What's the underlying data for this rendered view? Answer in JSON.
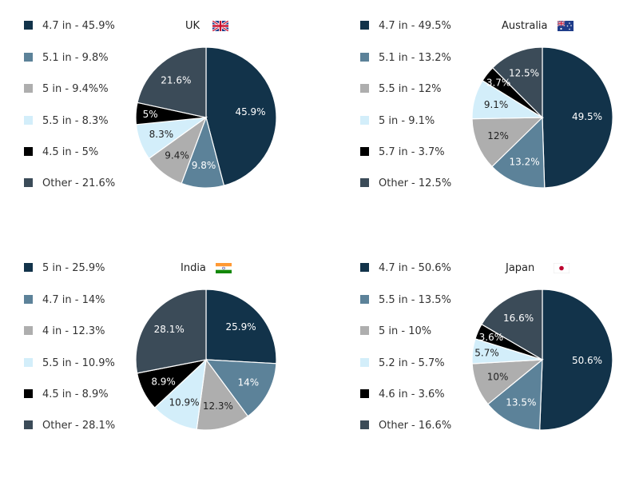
{
  "chart_data": [
    {
      "type": "pie",
      "title": "UK",
      "flag": "uk-flag",
      "slices": [
        {
          "label": "4.7 in",
          "value": 45.9,
          "legend": "4.7 in - 45.9%",
          "text": "45.9%",
          "color": "#12334a"
        },
        {
          "label": "5.1 in",
          "value": 9.8,
          "legend": "5.1 in - 9.8%",
          "text": "9.8%",
          "color": "#5c8299"
        },
        {
          "label": "5 in",
          "value": 9.4,
          "legend": "5 in - 9.4%%",
          "text": "9.4%",
          "color": "#aeaeae"
        },
        {
          "label": "5.5 in",
          "value": 8.3,
          "legend": "5.5 in - 8.3%",
          "text": "8.3%",
          "color": "#d3eefa"
        },
        {
          "label": "4.5 in",
          "value": 5.0,
          "legend": "4.5 in - 5%",
          "text": "5%",
          "color": "#000000"
        },
        {
          "label": "Other",
          "value": 21.6,
          "legend": "Other - 21.6%",
          "text": "21.6%",
          "color": "#3b4b58"
        }
      ]
    },
    {
      "type": "pie",
      "title": "Australia",
      "flag": "australia-flag",
      "slices": [
        {
          "label": "4.7 in",
          "value": 49.5,
          "legend": "4.7 in - 49.5%",
          "text": "49.5%",
          "color": "#12334a"
        },
        {
          "label": "5.1 in",
          "value": 13.2,
          "legend": "5.1 in - 13.2%",
          "text": "13.2%",
          "color": "#5c8299"
        },
        {
          "label": "5.5 in",
          "value": 12.0,
          "legend": "5.5 in - 12%",
          "text": "12%",
          "color": "#aeaeae"
        },
        {
          "label": "5 in",
          "value": 9.1,
          "legend": "5 in - 9.1%",
          "text": "9.1%",
          "color": "#d3eefa"
        },
        {
          "label": "5.7 in",
          "value": 3.7,
          "legend": "5.7 in - 3.7%",
          "text": "3.7%",
          "color": "#000000"
        },
        {
          "label": "Other",
          "value": 12.5,
          "legend": "Other - 12.5%",
          "text": "12.5%",
          "color": "#3b4b58"
        }
      ]
    },
    {
      "type": "pie",
      "title": "India",
      "flag": "india-flag",
      "slices": [
        {
          "label": "5 in",
          "value": 25.9,
          "legend": "5 in - 25.9%",
          "text": "25.9%",
          "color": "#12334a"
        },
        {
          "label": "4.7 in",
          "value": 14.0,
          "legend": "4.7 in - 14%",
          "text": "14%",
          "color": "#5c8299"
        },
        {
          "label": "4 in",
          "value": 12.3,
          "legend": "4 in - 12.3%",
          "text": "12.3%",
          "color": "#aeaeae"
        },
        {
          "label": "5.5 in",
          "value": 10.9,
          "legend": "5.5 in - 10.9%",
          "text": "10.9%",
          "color": "#d3eefa"
        },
        {
          "label": "4.5 in",
          "value": 8.9,
          "legend": "4.5 in - 8.9%",
          "text": "8.9%",
          "color": "#000000"
        },
        {
          "label": "Other",
          "value": 28.1,
          "legend": "Other - 28.1%",
          "text": "28.1%",
          "color": "#3b4b58"
        }
      ]
    },
    {
      "type": "pie",
      "title": "Japan",
      "flag": "japan-flag",
      "slices": [
        {
          "label": "4.7 in",
          "value": 50.6,
          "legend": "4.7 in - 50.6%",
          "text": "50.6%",
          "color": "#12334a"
        },
        {
          "label": "5.5 in",
          "value": 13.5,
          "legend": "5.5 in - 13.5%",
          "text": "13.5%",
          "color": "#5c8299"
        },
        {
          "label": "5 in",
          "value": 10.0,
          "legend": "5 in - 10%",
          "text": "10%",
          "color": "#aeaeae"
        },
        {
          "label": "5.2 in",
          "value": 5.7,
          "legend": "5.2 in - 5.7%",
          "text": "5.7%",
          "color": "#d3eefa"
        },
        {
          "label": "4.6 in",
          "value": 3.6,
          "legend": "4.6 in - 3.6%",
          "text": "3.6%",
          "color": "#000000"
        },
        {
          "label": "Other",
          "value": 16.6,
          "legend": "Other - 16.6%",
          "text": "16.6%",
          "color": "#3b4b58"
        }
      ]
    }
  ]
}
